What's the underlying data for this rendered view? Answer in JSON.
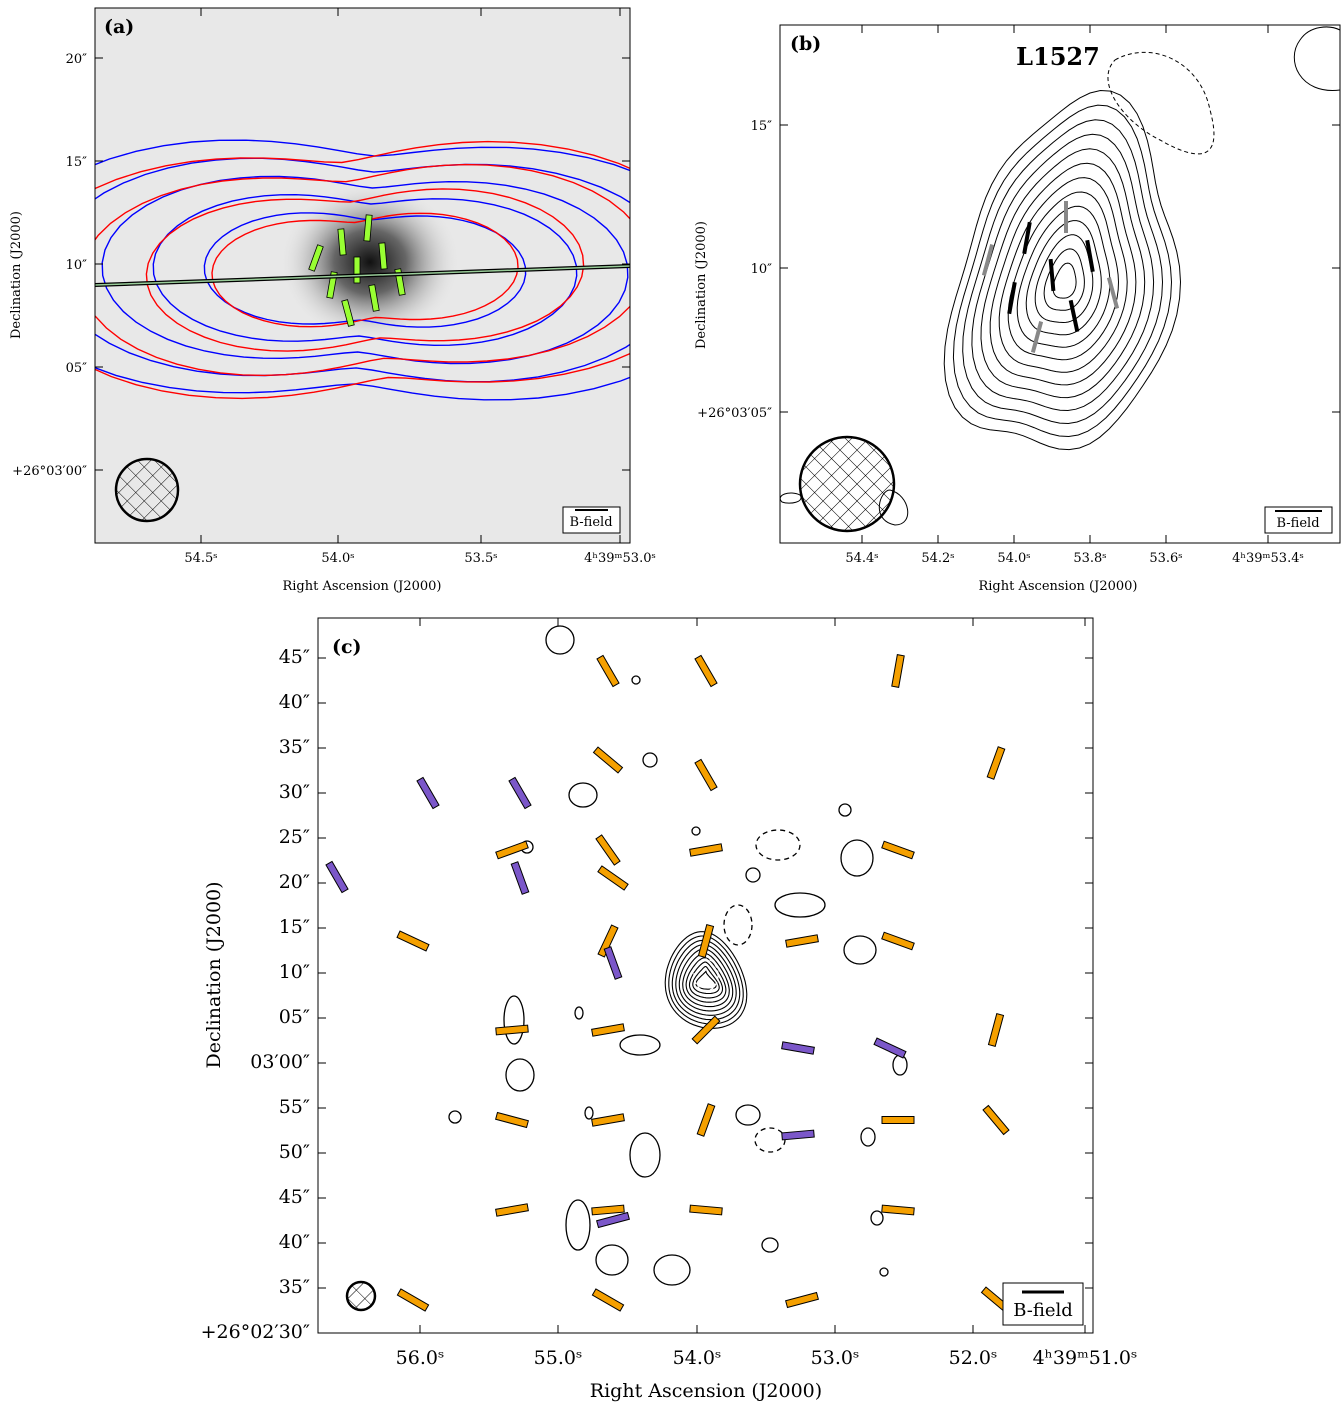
{
  "panels": [
    {
      "label": "(a)",
      "x_title": "Right Ascension (J2000)",
      "y_title": "Declination (J2000)",
      "legend": "B-field",
      "y_ticks": [
        "20″",
        "15″",
        "10″",
        "05″",
        "+26°03′00″"
      ],
      "x_ticks": [
        "54.5ˢ",
        "54.0ˢ",
        "53.5ˢ",
        "4ʰ39ᵐ53.0ˢ"
      ]
    },
    {
      "label": "(b)",
      "name": "L1527",
      "x_title": "Right Ascension (J2000)",
      "y_title": "Declination (J2000)",
      "legend": "B-field",
      "y_ticks": [
        "15″",
        "10″",
        "+26°03′05″"
      ],
      "x_ticks": [
        "54.4ˢ",
        "54.2ˢ",
        "54.0ˢ",
        "53.8ˢ",
        "53.6ˢ",
        "4ʰ39ᵐ53.4ˢ"
      ]
    },
    {
      "label": "(c)",
      "x_title": "Right Ascension (J2000)",
      "y_title": "Declination (J2000)",
      "legend": "B-field",
      "y_ticks": [
        "45″",
        "40″",
        "35″",
        "30″",
        "25″",
        "20″",
        "15″",
        "10″",
        "05″",
        "03′00″",
        "55″",
        "50″",
        "45″",
        "40″",
        "35″",
        "+26°02′30″"
      ],
      "x_ticks": [
        "56.0ˢ",
        "55.0ˢ",
        "54.0ˢ",
        "53.0ˢ",
        "52.0ˢ",
        "4ʰ39ᵐ51.0ˢ"
      ]
    }
  ]
}
